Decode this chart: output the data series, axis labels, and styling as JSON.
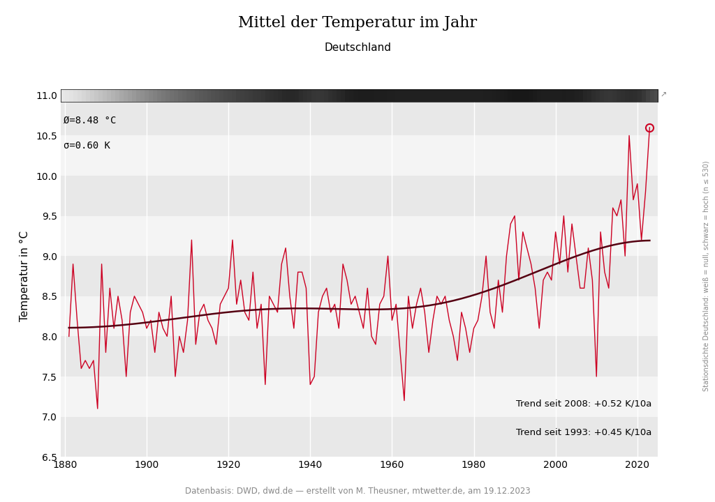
{
  "title": "Mittel der Temperatur im Jahr",
  "subtitle": "Deutschland",
  "ylabel": "Temperatur in °C",
  "footer": "Datenbasis: DWD, dwd.de — erstellt von M. Theusner, mtwetter.de, am 19.12.2023",
  "right_label": "Stationsdichte Deutschland: weiß = null, schwarz = hoch (n ≤ 530)",
  "annotation_mean": "Ø=8.48 °C",
  "annotation_sigma": "σ=0.60 K",
  "trend_text1": "Trend seit 2008: +0.52 K/10a",
  "trend_text2": "Trend seit 1993: +0.45 K/10a",
  "ylim": [
    6.5,
    11.0
  ],
  "xlim": [
    1879,
    2025
  ],
  "line_color": "#cc0022",
  "trend_color": "#550011",
  "record_color": "#cc0022",
  "years": [
    1881,
    1882,
    1883,
    1884,
    1885,
    1886,
    1887,
    1888,
    1889,
    1890,
    1891,
    1892,
    1893,
    1894,
    1895,
    1896,
    1897,
    1898,
    1899,
    1900,
    1901,
    1902,
    1903,
    1904,
    1905,
    1906,
    1907,
    1908,
    1909,
    1910,
    1911,
    1912,
    1913,
    1914,
    1915,
    1916,
    1917,
    1918,
    1919,
    1920,
    1921,
    1922,
    1923,
    1924,
    1925,
    1926,
    1927,
    1928,
    1929,
    1930,
    1931,
    1932,
    1933,
    1934,
    1935,
    1936,
    1937,
    1938,
    1939,
    1940,
    1941,
    1942,
    1943,
    1944,
    1945,
    1946,
    1947,
    1948,
    1949,
    1950,
    1951,
    1952,
    1953,
    1954,
    1955,
    1956,
    1957,
    1958,
    1959,
    1960,
    1961,
    1962,
    1963,
    1964,
    1965,
    1966,
    1967,
    1968,
    1969,
    1970,
    1971,
    1972,
    1973,
    1974,
    1975,
    1976,
    1977,
    1978,
    1979,
    1980,
    1981,
    1982,
    1983,
    1984,
    1985,
    1986,
    1987,
    1988,
    1989,
    1990,
    1991,
    1992,
    1993,
    1994,
    1995,
    1996,
    1997,
    1998,
    1999,
    2000,
    2001,
    2002,
    2003,
    2004,
    2005,
    2006,
    2007,
    2008,
    2009,
    2010,
    2011,
    2012,
    2013,
    2014,
    2015,
    2016,
    2017,
    2018,
    2019,
    2020,
    2021,
    2022,
    2023
  ],
  "temps": [
    8.0,
    8.9,
    8.2,
    7.6,
    7.7,
    7.6,
    7.7,
    7.1,
    8.9,
    7.8,
    8.6,
    8.1,
    8.5,
    8.2,
    7.5,
    8.3,
    8.5,
    8.4,
    8.3,
    8.1,
    8.2,
    7.8,
    8.3,
    8.1,
    8.0,
    8.5,
    7.5,
    8.0,
    7.8,
    8.2,
    9.2,
    7.9,
    8.3,
    8.4,
    8.2,
    8.1,
    7.9,
    8.4,
    8.5,
    8.6,
    9.2,
    8.4,
    8.7,
    8.3,
    8.2,
    8.8,
    8.1,
    8.4,
    7.4,
    8.5,
    8.4,
    8.3,
    8.9,
    9.1,
    8.5,
    8.1,
    8.8,
    8.8,
    8.6,
    7.4,
    7.5,
    8.3,
    8.5,
    8.6,
    8.3,
    8.4,
    8.1,
    8.9,
    8.7,
    8.4,
    8.5,
    8.3,
    8.1,
    8.6,
    8.0,
    7.9,
    8.4,
    8.5,
    9.0,
    8.2,
    8.4,
    7.8,
    7.2,
    8.5,
    8.1,
    8.4,
    8.6,
    8.3,
    7.8,
    8.2,
    8.5,
    8.4,
    8.5,
    8.2,
    8.0,
    7.7,
    8.3,
    8.1,
    7.8,
    8.1,
    8.2,
    8.5,
    9.0,
    8.3,
    8.1,
    8.7,
    8.3,
    9.0,
    9.4,
    9.5,
    8.7,
    9.3,
    9.1,
    8.9,
    8.6,
    8.1,
    8.7,
    8.8,
    8.7,
    9.3,
    8.9,
    9.5,
    8.8,
    9.4,
    9.0,
    8.6,
    8.6,
    9.1,
    8.7,
    7.5,
    9.3,
    8.8,
    8.6,
    9.6,
    9.5,
    9.7,
    9.0,
    10.5,
    9.7,
    9.9,
    9.2,
    9.8,
    10.6
  ],
  "record_year": 2023,
  "record_temp": 10.6,
  "colorbar_density": [
    0.05,
    0.08,
    0.1,
    0.12,
    0.14,
    0.16,
    0.18,
    0.2,
    0.22,
    0.24,
    0.26,
    0.28,
    0.3,
    0.32,
    0.34,
    0.36,
    0.38,
    0.4,
    0.42,
    0.44,
    0.46,
    0.48,
    0.5,
    0.52,
    0.54,
    0.55,
    0.56,
    0.57,
    0.58,
    0.6,
    0.62,
    0.63,
    0.64,
    0.65,
    0.66,
    0.67,
    0.68,
    0.69,
    0.7,
    0.71,
    0.72,
    0.73,
    0.74,
    0.75,
    0.76,
    0.77,
    0.78,
    0.79,
    0.75,
    0.8,
    0.81,
    0.82,
    0.83,
    0.84,
    0.85,
    0.86,
    0.87,
    0.88,
    0.89,
    0.7,
    0.72,
    0.74,
    0.76,
    0.78,
    0.8,
    0.82,
    0.84,
    0.86,
    0.88,
    0.89,
    0.9,
    0.91,
    0.92,
    0.88,
    0.86,
    0.84,
    0.88,
    0.9,
    0.91,
    0.89,
    0.87,
    0.85,
    0.83,
    0.88,
    0.87,
    0.88,
    0.89,
    0.9,
    0.85,
    0.86,
    0.87,
    0.88,
    0.87,
    0.88,
    0.87,
    0.88,
    0.89,
    0.88,
    0.85,
    0.86,
    0.87,
    0.88,
    0.9,
    0.88,
    0.86,
    0.88,
    0.87,
    0.9,
    0.92,
    0.93,
    0.91,
    0.92,
    0.9,
    0.89,
    0.88,
    0.85,
    0.87,
    0.88,
    0.86,
    0.9,
    0.88,
    0.92,
    0.89,
    0.9,
    0.86,
    0.85,
    0.84,
    0.88,
    0.84,
    0.7,
    0.72,
    0.74,
    0.76,
    0.8,
    0.82,
    0.84,
    0.83,
    0.9,
    0.88,
    0.9,
    0.85,
    0.88,
    0.2
  ]
}
